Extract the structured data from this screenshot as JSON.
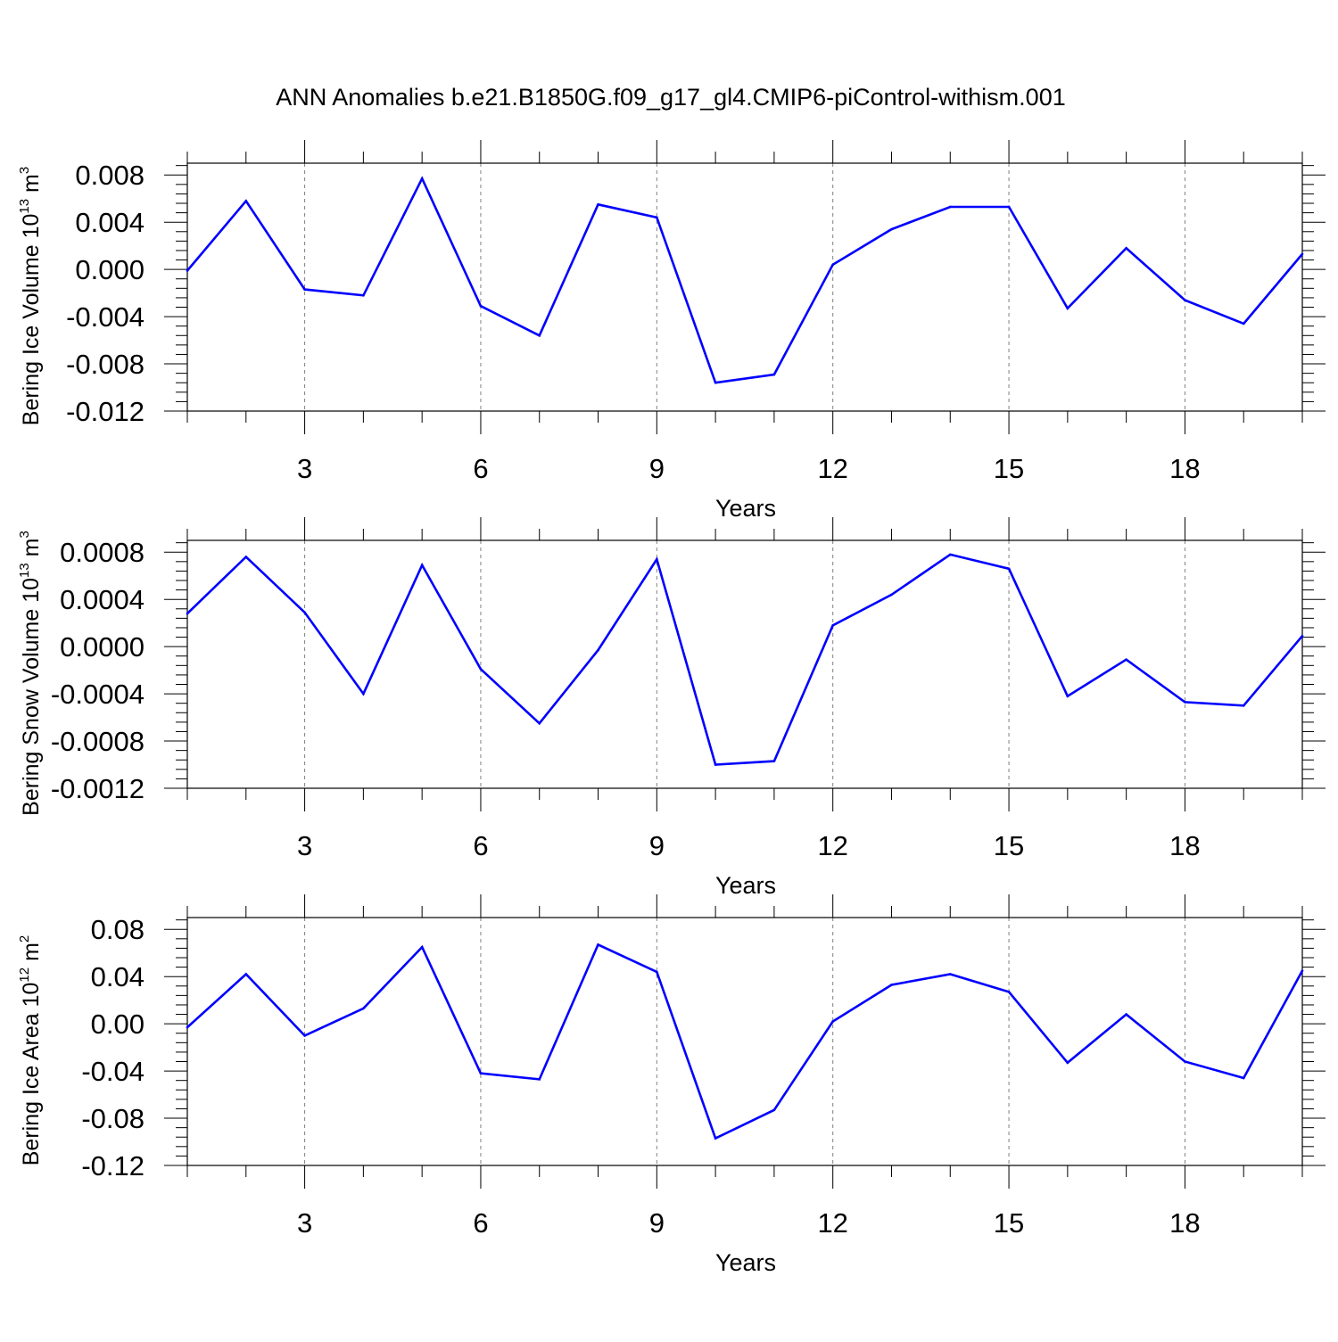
{
  "title": "ANN Anomalies b.e21.B1850G.f09_g17_gl4.CMIP6-piControl-withism.001",
  "colors": {
    "line": "#0000ff",
    "axis": "#000000",
    "grid": "#808080"
  },
  "chart_data": [
    {
      "type": "line",
      "ylabel": {
        "text": "Bering Ice Volume 10",
        "exponent": "13",
        "unit": " m",
        "unit_exponent": "3"
      },
      "xlabel": "Years",
      "xlim": [
        1,
        20
      ],
      "ylim": [
        -0.012,
        0.009
      ],
      "x_ticks": [
        3,
        6,
        9,
        12,
        15,
        18
      ],
      "y_ticks": [
        -0.012,
        -0.008,
        -0.004,
        0.0,
        0.004,
        0.008
      ],
      "y_tick_labels": [
        "-0.012",
        "-0.008",
        "-0.004",
        "0.000",
        "0.004",
        "0.008"
      ],
      "grid": "dashed vertical at major x ticks",
      "x": [
        1,
        2,
        3,
        4,
        5,
        6,
        7,
        8,
        9,
        10,
        11,
        12,
        13,
        14,
        15,
        16,
        17,
        18,
        19,
        20
      ],
      "values": [
        -0.0001,
        0.0058,
        -0.0017,
        -0.0022,
        0.0077,
        -0.0031,
        -0.0056,
        0.0055,
        0.0044,
        -0.0096,
        -0.0089,
        0.0004,
        0.0034,
        0.0053,
        0.0053,
        -0.0033,
        0.0018,
        -0.0026,
        -0.0046,
        0.0013
      ]
    },
    {
      "type": "line",
      "ylabel": {
        "text": "Bering Snow Volume 10",
        "exponent": "13",
        "unit": " m",
        "unit_exponent": "3"
      },
      "xlabel": "Years",
      "xlim": [
        1,
        20
      ],
      "ylim": [
        -0.0012,
        0.0009
      ],
      "x_ticks": [
        3,
        6,
        9,
        12,
        15,
        18
      ],
      "y_ticks": [
        -0.0012,
        -0.0008,
        -0.0004,
        0.0,
        0.0004,
        0.0008
      ],
      "y_tick_labels": [
        "-0.0012",
        "-0.0008",
        "-0.0004",
        "0.0000",
        "0.0004",
        "0.0008"
      ],
      "grid": "dashed vertical at major x ticks",
      "x": [
        1,
        2,
        3,
        4,
        5,
        6,
        7,
        8,
        9,
        10,
        11,
        12,
        13,
        14,
        15,
        16,
        17,
        18,
        19,
        20
      ],
      "values": [
        0.00028,
        0.00076,
        0.00029,
        -0.0004,
        0.00069,
        -0.00019,
        -0.00065,
        -3e-05,
        0.00074,
        -0.001,
        -0.00097,
        0.00018,
        0.00044,
        0.00078,
        0.00066,
        -0.00042,
        -0.00011,
        -0.00047,
        -0.0005,
        9e-05
      ]
    },
    {
      "type": "line",
      "ylabel": {
        "text": "Bering Ice Area 10",
        "exponent": "12",
        "unit": " m",
        "unit_exponent": "2"
      },
      "xlabel": "Years",
      "xlim": [
        1,
        20
      ],
      "ylim": [
        -0.12,
        0.09
      ],
      "x_ticks": [
        3,
        6,
        9,
        12,
        15,
        18
      ],
      "y_ticks": [
        -0.12,
        -0.08,
        -0.04,
        0.0,
        0.04,
        0.08
      ],
      "y_tick_labels": [
        "-0.12",
        "-0.08",
        "-0.04",
        "0.00",
        "0.04",
        "0.08"
      ],
      "grid": "dashed vertical at major x ticks",
      "x": [
        1,
        2,
        3,
        4,
        5,
        6,
        7,
        8,
        9,
        10,
        11,
        12,
        13,
        14,
        15,
        16,
        17,
        18,
        19,
        20
      ],
      "values": [
        -0.003,
        0.042,
        -0.01,
        0.013,
        0.065,
        -0.042,
        -0.047,
        0.067,
        0.044,
        -0.097,
        -0.073,
        0.002,
        0.033,
        0.042,
        0.027,
        -0.033,
        0.008,
        -0.032,
        -0.046,
        0.045
      ]
    }
  ]
}
